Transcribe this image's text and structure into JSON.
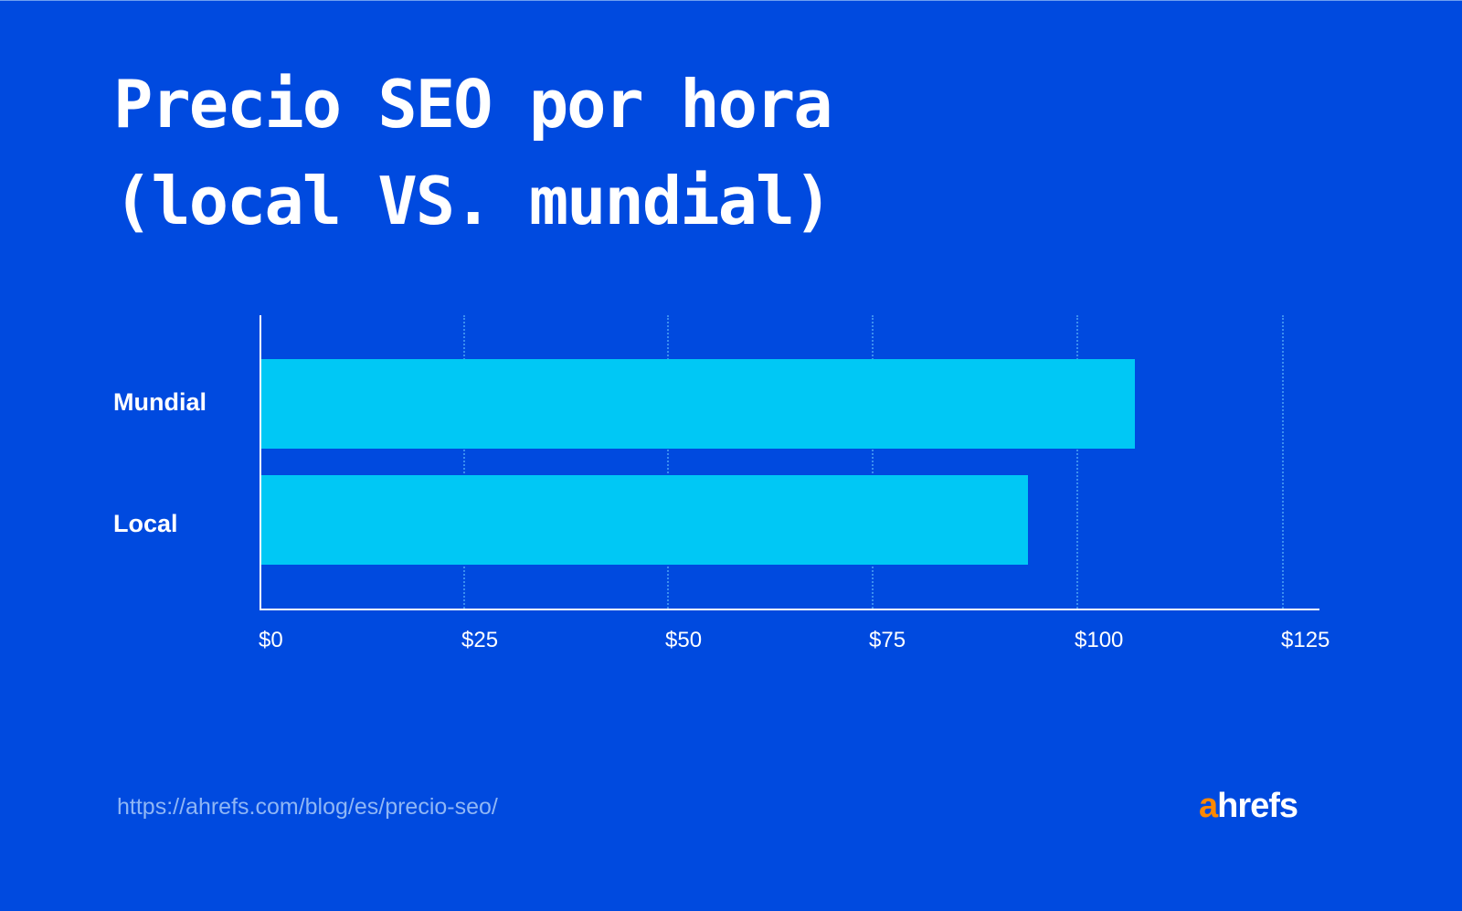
{
  "title_line1": "Precio SEO por hora",
  "title_line2": "(local VS. mundial)",
  "source_url": "https://ahrefs.com/blog/es/precio-seo/",
  "logo": {
    "accent": "a",
    "rest": "hrefs"
  },
  "colors": {
    "background": "#004ADF",
    "bar": "#00C8F5",
    "logo_accent": "#FF8800",
    "url": "#8FB6F5"
  },
  "chart_data": {
    "type": "bar",
    "orientation": "horizontal",
    "title": "Precio SEO por hora (local VS. mundial)",
    "categories": [
      "Mundial",
      "Local"
    ],
    "values": [
      107,
      94
    ],
    "xlabel": "",
    "ylabel": "",
    "xlim": [
      0,
      125
    ],
    "xticks": [
      "$0",
      "$25",
      "$50",
      "$75",
      "$100",
      "$125"
    ],
    "grid": "vertical dotted",
    "legend": "none"
  }
}
